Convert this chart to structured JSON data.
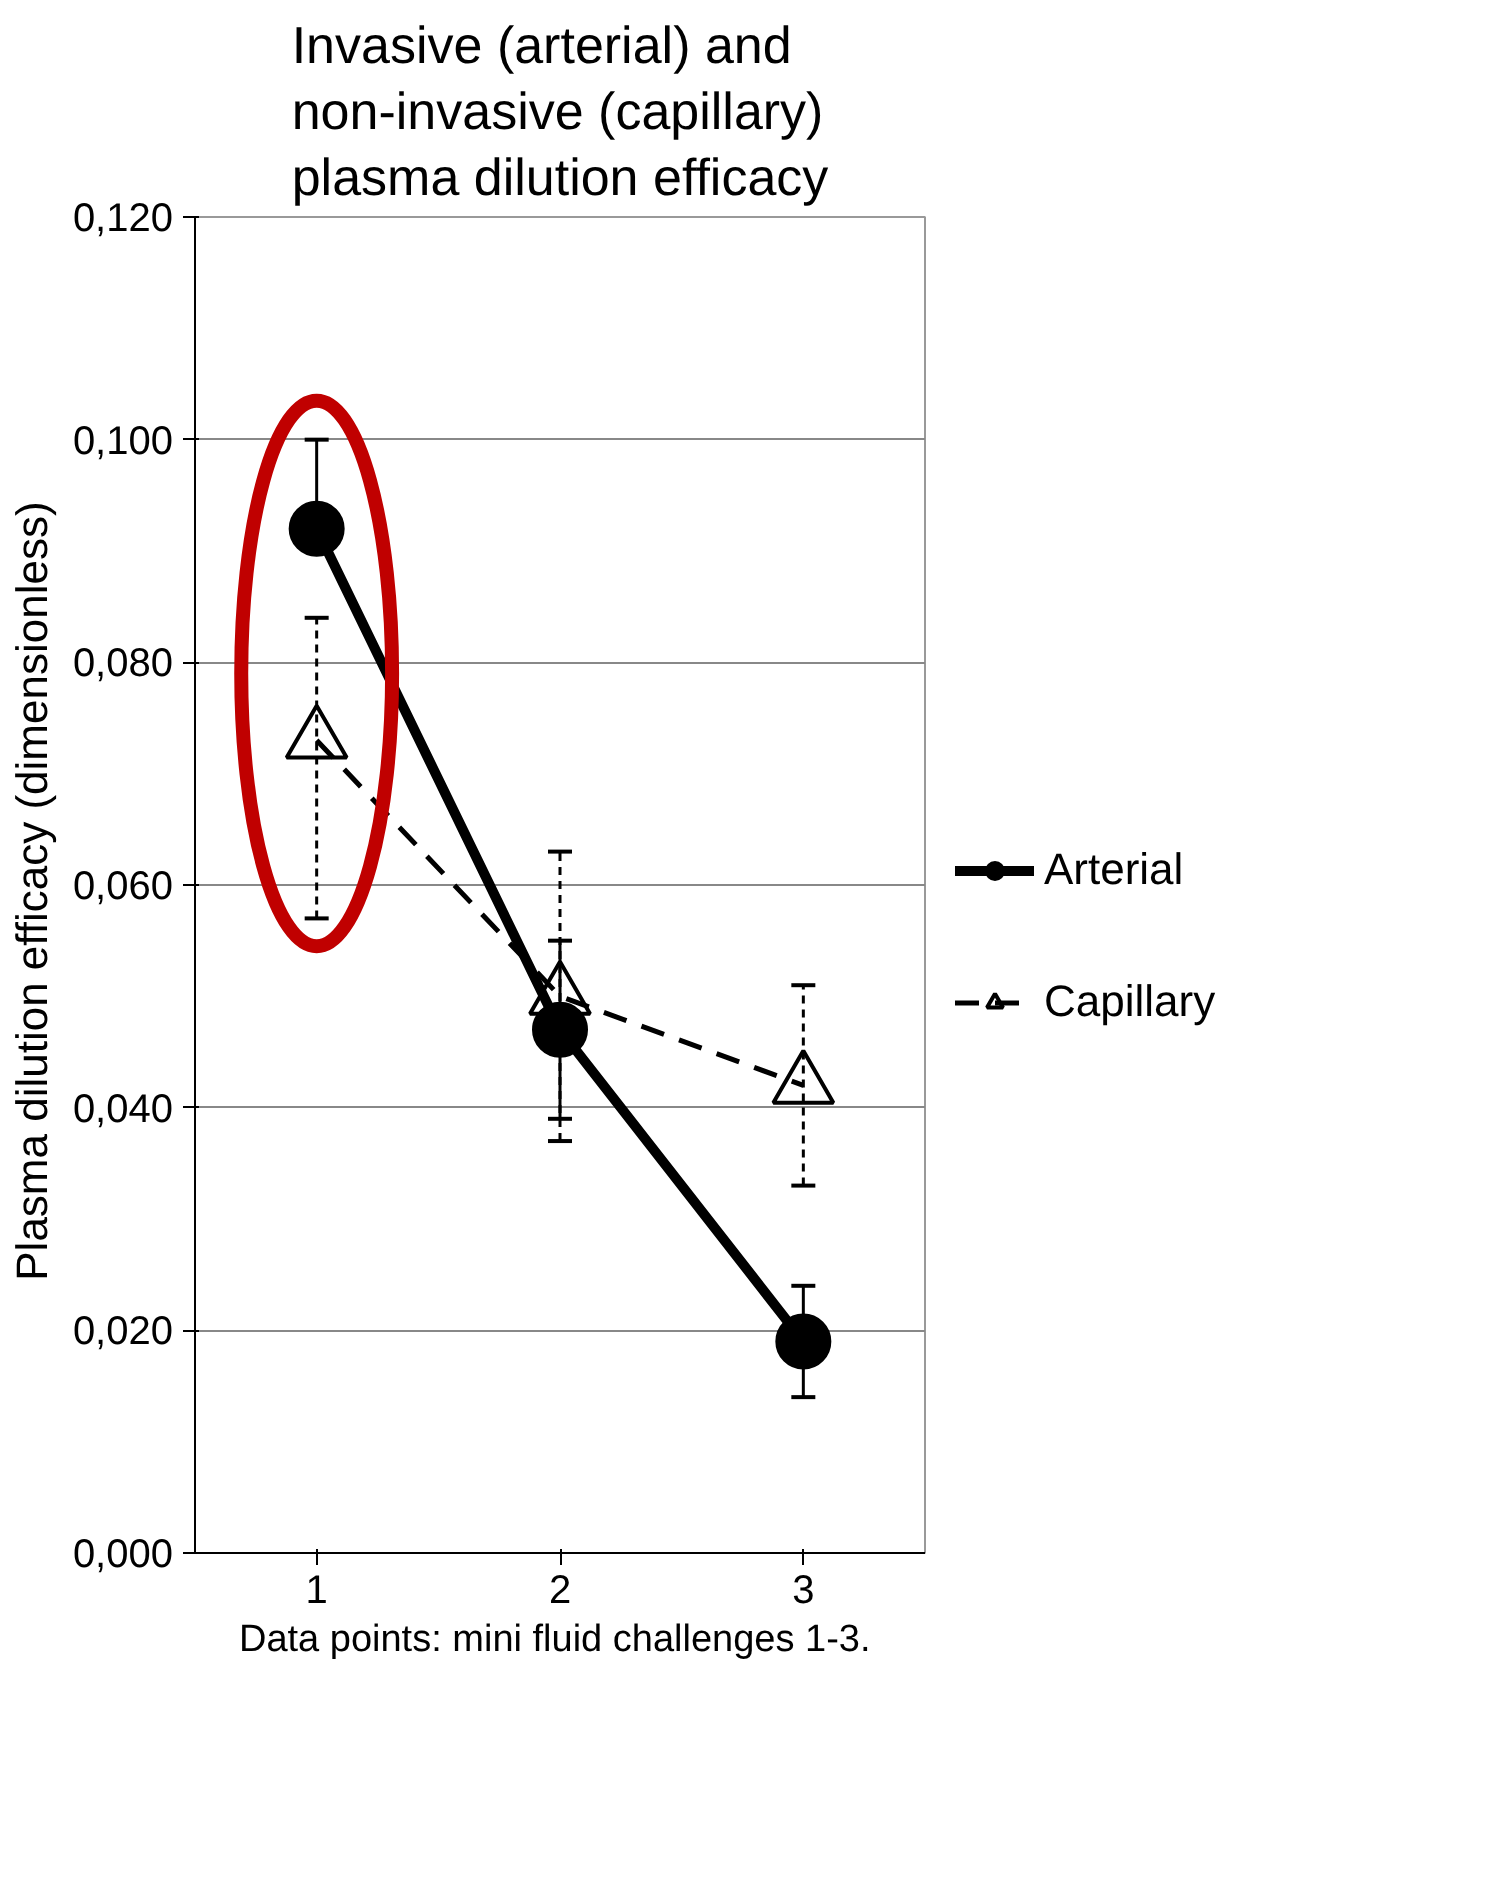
{
  "chart_data": {
    "type": "line",
    "title": "Invasive (arterial) and\nnon-invasive (capillary)\nplasma dilution efficacy",
    "xlabel": "Data points: mini fluid  challenges 1-3.",
    "ylabel": "Plasma dilution efficacy  (dimensionless)",
    "categories": [
      "1",
      "2",
      "3"
    ],
    "series": [
      {
        "name": "Arterial",
        "color": "#000000",
        "values": [
          0.092,
          0.047,
          0.019
        ],
        "errors": [
          [
            0.092,
            0.1
          ],
          [
            0.039,
            0.055
          ],
          [
            0.014,
            0.024
          ]
        ],
        "marker": "circle",
        "line_style": "solid"
      },
      {
        "name": "Capillary",
        "color": "#000000",
        "values": [
          0.073,
          0.05,
          0.042
        ],
        "errors": [
          [
            0.057,
            0.084
          ],
          [
            0.037,
            0.063
          ],
          [
            0.033,
            0.051
          ]
        ],
        "marker": "triangle",
        "line_style": "dashed"
      }
    ],
    "ylim": [
      0,
      0.12
    ],
    "yticks": [
      {
        "value": 0,
        "label": "0,000"
      },
      {
        "value": 0.02,
        "label": "0,020"
      },
      {
        "value": 0.04,
        "label": "0,040"
      },
      {
        "value": 0.06,
        "label": "0,060"
      },
      {
        "value": 0.08,
        "label": "0,080"
      },
      {
        "value": 0.1,
        "label": "0,100"
      },
      {
        "value": 0.12,
        "label": "0,120"
      }
    ],
    "grid": "y",
    "legend": "right"
  }
}
